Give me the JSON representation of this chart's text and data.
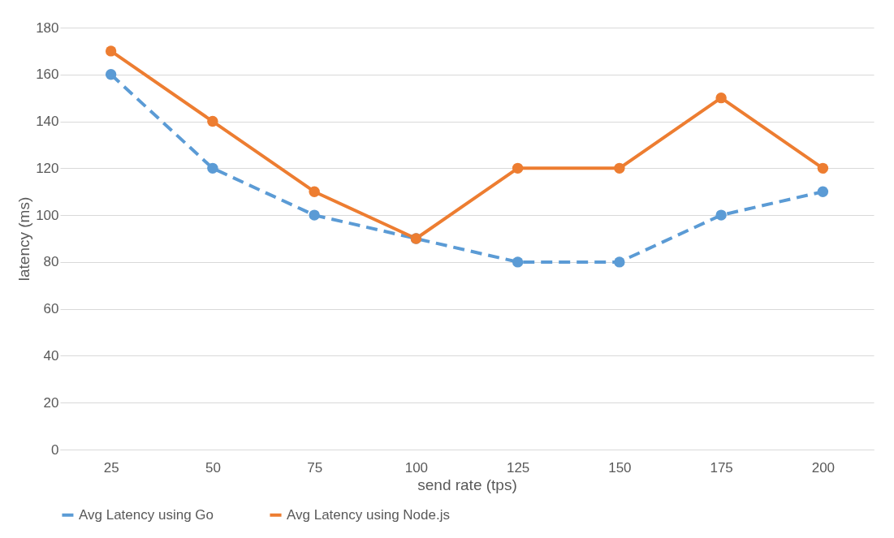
{
  "chart_data": {
    "type": "line",
    "xlabel": "send rate (tps)",
    "ylabel": "latency (ms)",
    "categories": [
      "25",
      "50",
      "75",
      "100",
      "125",
      "150",
      "175",
      "200"
    ],
    "series": [
      {
        "name": "Avg Latency using Go",
        "color": "#5b9bd5",
        "values": [
          160,
          120,
          100,
          90,
          80,
          80,
          100,
          110
        ],
        "line_style": "dashed"
      },
      {
        "name": "Avg Latency using Node.js",
        "color": "#ed7d31",
        "values": [
          170,
          140,
          110,
          90,
          120,
          120,
          150,
          120
        ],
        "line_style": "solid"
      }
    ],
    "ylim": [
      0,
      180
    ],
    "yticks": [
      0,
      20,
      40,
      60,
      80,
      100,
      120,
      140,
      160,
      180
    ],
    "grid": "y",
    "legend": "bottom",
    "marker": "circle"
  }
}
